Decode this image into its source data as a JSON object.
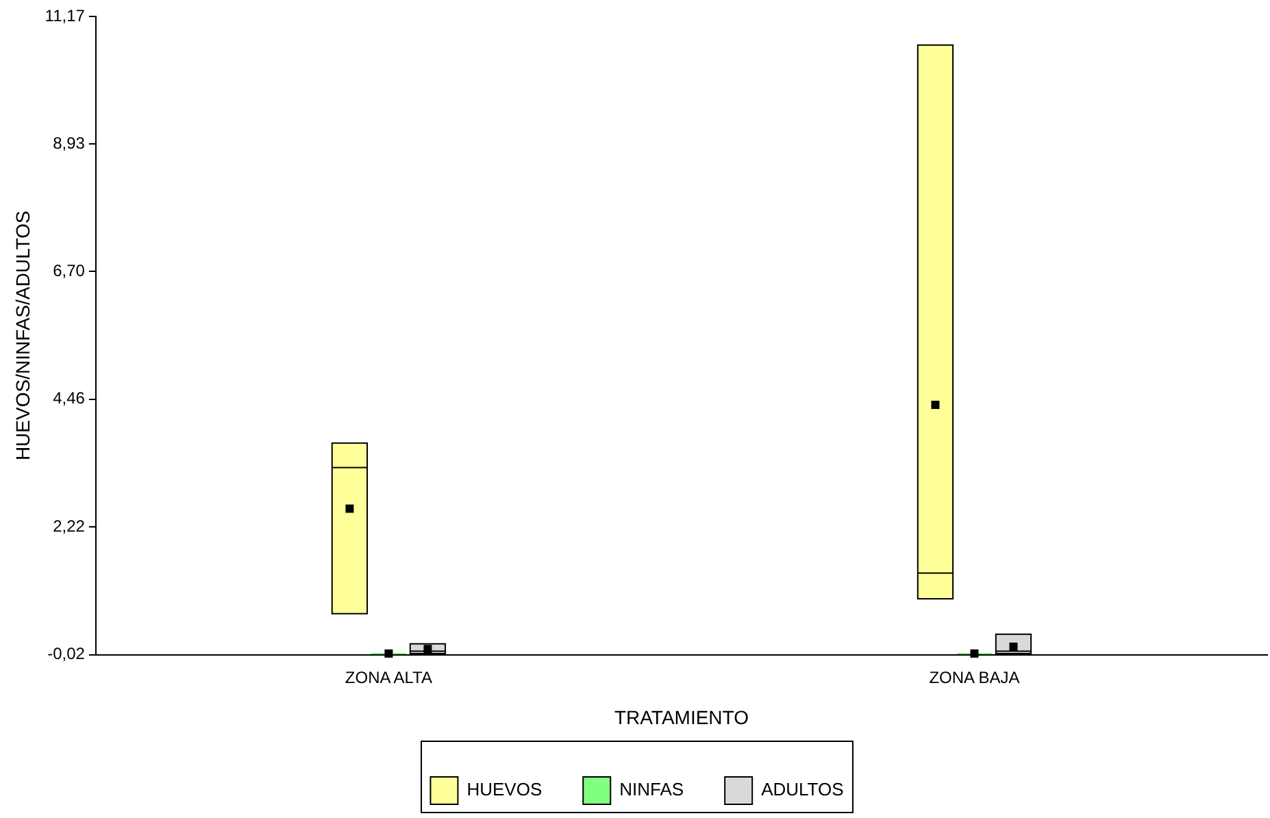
{
  "chart_data": {
    "type": "box",
    "xlabel": "TRATAMIENTO",
    "ylabel": "HUEVOS/NINFAS/ADULTOS",
    "categories": [
      "ZONA ALTA",
      "ZONA BAJA"
    ],
    "ylim": [
      -0.02,
      11.17
    ],
    "yticks": [
      {
        "value": -0.02,
        "label": "-0,02"
      },
      {
        "value": 2.22,
        "label": "2,22"
      },
      {
        "value": 4.46,
        "label": "4,46"
      },
      {
        "value": 6.7,
        "label": "6,70"
      },
      {
        "value": 8.93,
        "label": "8,93"
      },
      {
        "value": 11.17,
        "label": "11,17"
      }
    ],
    "grid": false,
    "legend": "bottom",
    "series": [
      {
        "name": "HUEVOS",
        "color": "#ffff99",
        "boxes": [
          {
            "low": 0.7,
            "q1": 0.7,
            "median": 3.26,
            "q3": 3.69,
            "high": 3.69,
            "mean": 2.54
          },
          {
            "low": 0.96,
            "q1": 0.96,
            "median": 1.41,
            "q3": 10.67,
            "high": 10.67,
            "mean": 4.36
          }
        ]
      },
      {
        "name": "NINFAS",
        "color": "#80ff80",
        "boxes": [
          {
            "low": 0,
            "q1": 0,
            "median": 0,
            "q3": 0,
            "high": 0,
            "mean": 0
          },
          {
            "low": 0,
            "q1": 0,
            "median": 0,
            "q3": 0,
            "high": 0,
            "mean": 0
          }
        ]
      },
      {
        "name": "ADULTOS",
        "color": "#d9d9d9",
        "boxes": [
          {
            "low": 0,
            "q1": 0,
            "median": 0.04,
            "q3": 0.17,
            "high": 0.17,
            "mean": 0.08
          },
          {
            "low": 0,
            "q1": 0,
            "median": 0.04,
            "q3": 0.34,
            "high": 0.34,
            "mean": 0.12
          }
        ]
      }
    ]
  }
}
